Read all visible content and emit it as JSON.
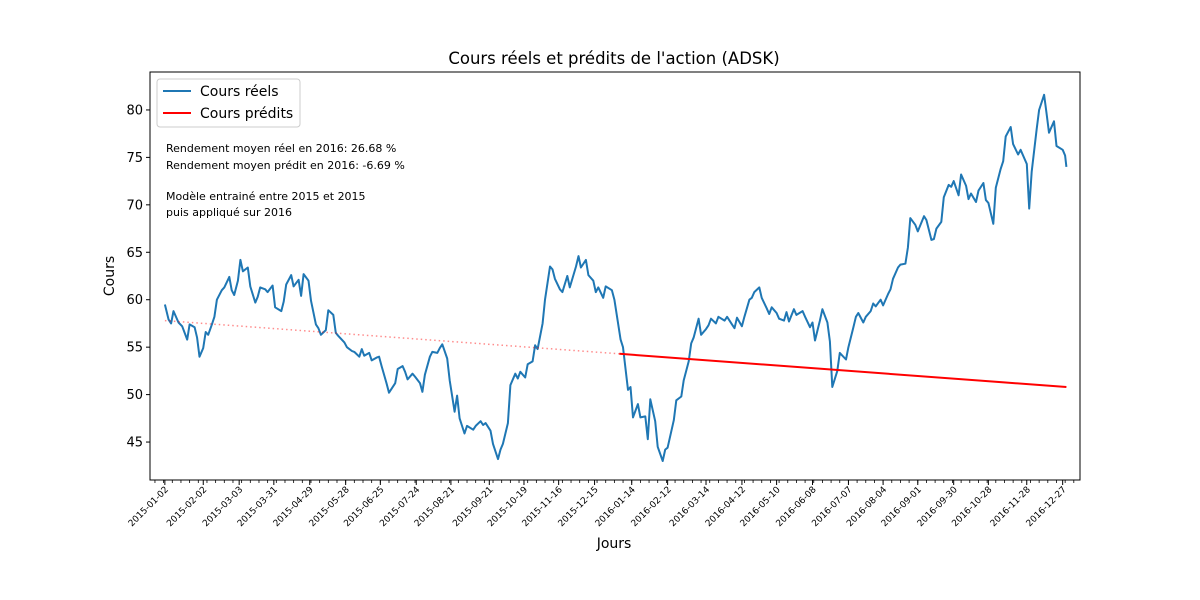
{
  "chart_data": {
    "type": "line",
    "title": "Cours réels et prédits de l'action (ADSK)",
    "xlabel": "Jours",
    "ylabel": "Cours",
    "ylim": [
      41,
      84
    ],
    "xlim": [
      "2014-12-21",
      "2017-01-10"
    ],
    "yticks": [
      45,
      50,
      55,
      60,
      65,
      70,
      75,
      80
    ],
    "x_tick_labels": [
      "2015-01-02",
      "2015-02-02",
      "2015-03-03",
      "2015-03-31",
      "2015-04-29",
      "2015-05-28",
      "2015-06-25",
      "2015-07-24",
      "2015-08-21",
      "2015-09-21",
      "2015-10-19",
      "2015-11-16",
      "2015-12-15",
      "2016-01-14",
      "2016-02-12",
      "2016-03-14",
      "2016-04-12",
      "2016-05-10",
      "2016-06-08",
      "2016-07-07",
      "2016-08-04",
      "2016-09-01",
      "2016-09-30",
      "2016-10-28",
      "2016-11-28",
      "2016-12-27"
    ],
    "legend_placement": "top-left",
    "grid": false,
    "series": [
      {
        "name": "Cours réels",
        "color": "#1f77b4",
        "style": "solid",
        "points": [
          [
            "2015-01-02",
            59.5
          ],
          [
            "2015-01-05",
            57.9
          ],
          [
            "2015-01-07",
            57.5
          ],
          [
            "2015-01-09",
            58.8
          ],
          [
            "2015-01-13",
            57.6
          ],
          [
            "2015-01-16",
            57.2
          ],
          [
            "2015-01-20",
            55.8
          ],
          [
            "2015-01-22",
            57.4
          ],
          [
            "2015-01-26",
            57.1
          ],
          [
            "2015-01-28",
            56.0
          ],
          [
            "2015-01-30",
            54.0
          ],
          [
            "2015-02-02",
            54.9
          ],
          [
            "2015-02-04",
            56.6
          ],
          [
            "2015-02-06",
            56.3
          ],
          [
            "2015-02-09",
            57.4
          ],
          [
            "2015-02-11",
            58.2
          ],
          [
            "2015-02-13",
            60.0
          ],
          [
            "2015-02-17",
            61.0
          ],
          [
            "2015-02-19",
            61.3
          ],
          [
            "2015-02-23",
            62.4
          ],
          [
            "2015-02-25",
            61.0
          ],
          [
            "2015-02-27",
            60.5
          ],
          [
            "2015-03-02",
            62.0
          ],
          [
            "2015-03-04",
            64.2
          ],
          [
            "2015-03-06",
            63.0
          ],
          [
            "2015-03-10",
            63.4
          ],
          [
            "2015-03-12",
            61.4
          ],
          [
            "2015-03-16",
            59.7
          ],
          [
            "2015-03-18",
            60.3
          ],
          [
            "2015-03-20",
            61.3
          ],
          [
            "2015-03-24",
            61.1
          ],
          [
            "2015-03-26",
            60.8
          ],
          [
            "2015-03-30",
            61.5
          ],
          [
            "2015-04-01",
            59.2
          ],
          [
            "2015-04-06",
            58.8
          ],
          [
            "2015-04-08",
            59.8
          ],
          [
            "2015-04-10",
            61.6
          ],
          [
            "2015-04-14",
            62.6
          ],
          [
            "2015-04-16",
            61.4
          ],
          [
            "2015-04-20",
            62.1
          ],
          [
            "2015-04-22",
            60.4
          ],
          [
            "2015-04-24",
            62.7
          ],
          [
            "2015-04-28",
            62.0
          ],
          [
            "2015-04-30",
            59.9
          ],
          [
            "2015-05-04",
            57.4
          ],
          [
            "2015-05-06",
            57.0
          ],
          [
            "2015-05-08",
            56.3
          ],
          [
            "2015-05-12",
            56.8
          ],
          [
            "2015-05-14",
            58.9
          ],
          [
            "2015-05-18",
            58.4
          ],
          [
            "2015-05-20",
            56.5
          ],
          [
            "2015-05-22",
            56.2
          ],
          [
            "2015-05-27",
            55.5
          ],
          [
            "2015-05-29",
            55.0
          ],
          [
            "2015-06-02",
            54.6
          ],
          [
            "2015-06-04",
            54.5
          ],
          [
            "2015-06-08",
            54.0
          ],
          [
            "2015-06-10",
            54.8
          ],
          [
            "2015-06-12",
            54.1
          ],
          [
            "2015-06-16",
            54.4
          ],
          [
            "2015-06-18",
            53.6
          ],
          [
            "2015-06-22",
            53.9
          ],
          [
            "2015-06-24",
            54.0
          ],
          [
            "2015-06-26",
            53.0
          ],
          [
            "2015-06-30",
            51.2
          ],
          [
            "2015-07-02",
            50.2
          ],
          [
            "2015-07-07",
            51.2
          ],
          [
            "2015-07-09",
            52.7
          ],
          [
            "2015-07-13",
            53.0
          ],
          [
            "2015-07-15",
            52.4
          ],
          [
            "2015-07-17",
            51.6
          ],
          [
            "2015-07-21",
            52.2
          ],
          [
            "2015-07-23",
            51.9
          ],
          [
            "2015-07-27",
            51.2
          ],
          [
            "2015-07-29",
            50.3
          ],
          [
            "2015-07-31",
            52.1
          ],
          [
            "2015-08-04",
            54.0
          ],
          [
            "2015-08-06",
            54.5
          ],
          [
            "2015-08-10",
            54.4
          ],
          [
            "2015-08-12",
            54.9
          ],
          [
            "2015-08-14",
            55.3
          ],
          [
            "2015-08-18",
            53.8
          ],
          [
            "2015-08-20",
            51.5
          ],
          [
            "2015-08-24",
            48.2
          ],
          [
            "2015-08-26",
            49.9
          ],
          [
            "2015-08-28",
            47.5
          ],
          [
            "2015-09-01",
            45.9
          ],
          [
            "2015-09-03",
            46.7
          ],
          [
            "2015-09-08",
            46.3
          ],
          [
            "2015-09-10",
            46.7
          ],
          [
            "2015-09-14",
            47.2
          ],
          [
            "2015-09-16",
            46.8
          ],
          [
            "2015-09-18",
            47.0
          ],
          [
            "2015-09-22",
            46.2
          ],
          [
            "2015-09-24",
            44.8
          ],
          [
            "2015-09-28",
            43.2
          ],
          [
            "2015-09-30",
            44.2
          ],
          [
            "2015-10-02",
            44.8
          ],
          [
            "2015-10-06",
            47.0
          ],
          [
            "2015-10-08",
            51.0
          ],
          [
            "2015-10-12",
            52.2
          ],
          [
            "2015-10-14",
            51.7
          ],
          [
            "2015-10-16",
            52.4
          ],
          [
            "2015-10-20",
            51.8
          ],
          [
            "2015-10-22",
            53.2
          ],
          [
            "2015-10-26",
            53.5
          ],
          [
            "2015-10-28",
            55.2
          ],
          [
            "2015-10-30",
            54.8
          ],
          [
            "2015-11-03",
            57.5
          ],
          [
            "2015-11-05",
            60.0
          ],
          [
            "2015-11-09",
            63.5
          ],
          [
            "2015-11-11",
            63.2
          ],
          [
            "2015-11-13",
            62.2
          ],
          [
            "2015-11-17",
            61.1
          ],
          [
            "2015-11-19",
            60.8
          ],
          [
            "2015-11-23",
            62.5
          ],
          [
            "2015-11-25",
            61.3
          ],
          [
            "2015-11-30",
            63.5
          ],
          [
            "2015-12-02",
            64.6
          ],
          [
            "2015-12-04",
            63.4
          ],
          [
            "2015-12-08",
            64.2
          ],
          [
            "2015-12-10",
            62.6
          ],
          [
            "2015-12-14",
            62.0
          ],
          [
            "2015-12-16",
            60.8
          ],
          [
            "2015-12-18",
            61.3
          ],
          [
            "2015-12-22",
            60.2
          ],
          [
            "2015-12-24",
            61.4
          ],
          [
            "2015-12-29",
            61.0
          ],
          [
            "2015-12-31",
            60.0
          ],
          [
            "2016-01-05",
            55.8
          ],
          [
            "2016-01-07",
            55.0
          ],
          [
            "2016-01-11",
            50.5
          ],
          [
            "2016-01-13",
            50.8
          ],
          [
            "2016-01-15",
            47.6
          ],
          [
            "2016-01-19",
            49.0
          ],
          [
            "2016-01-21",
            47.6
          ],
          [
            "2016-01-25",
            47.7
          ],
          [
            "2016-01-27",
            45.3
          ],
          [
            "2016-01-29",
            49.5
          ],
          [
            "2016-02-02",
            47.2
          ],
          [
            "2016-02-04",
            44.5
          ],
          [
            "2016-02-08",
            43.0
          ],
          [
            "2016-02-10",
            44.2
          ],
          [
            "2016-02-12",
            44.4
          ],
          [
            "2016-02-17",
            47.3
          ],
          [
            "2016-02-19",
            49.4
          ],
          [
            "2016-02-23",
            49.8
          ],
          [
            "2016-02-25",
            51.5
          ],
          [
            "2016-02-29",
            53.5
          ],
          [
            "2016-03-02",
            55.4
          ],
          [
            "2016-03-04",
            56.0
          ],
          [
            "2016-03-08",
            58.0
          ],
          [
            "2016-03-10",
            56.3
          ],
          [
            "2016-03-14",
            56.9
          ],
          [
            "2016-03-16",
            57.3
          ],
          [
            "2016-03-18",
            58.0
          ],
          [
            "2016-03-22",
            57.5
          ],
          [
            "2016-03-24",
            58.2
          ],
          [
            "2016-03-29",
            57.8
          ],
          [
            "2016-03-31",
            58.2
          ],
          [
            "2016-04-04",
            57.4
          ],
          [
            "2016-04-06",
            57.0
          ],
          [
            "2016-04-08",
            58.1
          ],
          [
            "2016-04-12",
            57.2
          ],
          [
            "2016-04-14",
            58.2
          ],
          [
            "2016-04-18",
            60.0
          ],
          [
            "2016-04-20",
            60.2
          ],
          [
            "2016-04-22",
            60.8
          ],
          [
            "2016-04-26",
            61.3
          ],
          [
            "2016-04-28",
            60.2
          ],
          [
            "2016-05-02",
            59.1
          ],
          [
            "2016-05-04",
            58.5
          ],
          [
            "2016-05-06",
            59.2
          ],
          [
            "2016-05-10",
            58.6
          ],
          [
            "2016-05-12",
            58.0
          ],
          [
            "2016-05-16",
            57.8
          ],
          [
            "2016-05-18",
            58.7
          ],
          [
            "2016-05-20",
            57.7
          ],
          [
            "2016-05-24",
            59.0
          ],
          [
            "2016-05-26",
            58.4
          ],
          [
            "2016-05-31",
            58.8
          ],
          [
            "2016-06-02",
            58.2
          ],
          [
            "2016-06-06",
            57.1
          ],
          [
            "2016-06-08",
            57.6
          ],
          [
            "2016-06-10",
            55.7
          ],
          [
            "2016-06-14",
            57.8
          ],
          [
            "2016-06-16",
            59.0
          ],
          [
            "2016-06-20",
            57.6
          ],
          [
            "2016-06-22",
            55.6
          ],
          [
            "2016-06-24",
            50.8
          ],
          [
            "2016-06-28",
            52.5
          ],
          [
            "2016-06-30",
            54.4
          ],
          [
            "2016-07-05",
            53.7
          ],
          [
            "2016-07-07",
            55.0
          ],
          [
            "2016-07-11",
            57.1
          ],
          [
            "2016-07-13",
            58.2
          ],
          [
            "2016-07-15",
            58.6
          ],
          [
            "2016-07-19",
            57.6
          ],
          [
            "2016-07-21",
            58.2
          ],
          [
            "2016-07-25",
            58.8
          ],
          [
            "2016-07-27",
            59.6
          ],
          [
            "2016-07-29",
            59.3
          ],
          [
            "2016-08-02",
            60.0
          ],
          [
            "2016-08-04",
            59.4
          ],
          [
            "2016-08-08",
            60.6
          ],
          [
            "2016-08-10",
            61.1
          ],
          [
            "2016-08-12",
            62.2
          ],
          [
            "2016-08-16",
            63.4
          ],
          [
            "2016-08-18",
            63.7
          ],
          [
            "2016-08-22",
            63.8
          ],
          [
            "2016-08-24",
            65.5
          ],
          [
            "2016-08-26",
            68.6
          ],
          [
            "2016-08-30",
            67.9
          ],
          [
            "2016-09-01",
            67.2
          ],
          [
            "2016-09-06",
            68.8
          ],
          [
            "2016-09-08",
            68.4
          ],
          [
            "2016-09-12",
            66.3
          ],
          [
            "2016-09-14",
            66.4
          ],
          [
            "2016-09-16",
            67.5
          ],
          [
            "2016-09-20",
            68.2
          ],
          [
            "2016-09-22",
            70.8
          ],
          [
            "2016-09-26",
            72.1
          ],
          [
            "2016-09-28",
            71.9
          ],
          [
            "2016-09-30",
            72.5
          ],
          [
            "2016-10-04",
            71.0
          ],
          [
            "2016-10-06",
            73.2
          ],
          [
            "2016-10-10",
            72.0
          ],
          [
            "2016-10-12",
            70.6
          ],
          [
            "2016-10-14",
            71.2
          ],
          [
            "2016-10-18",
            70.3
          ],
          [
            "2016-10-20",
            71.5
          ],
          [
            "2016-10-24",
            72.3
          ],
          [
            "2016-10-26",
            70.5
          ],
          [
            "2016-10-28",
            70.2
          ],
          [
            "2016-11-01",
            68.0
          ],
          [
            "2016-11-03",
            71.8
          ],
          [
            "2016-11-07",
            73.8
          ],
          [
            "2016-11-09",
            74.6
          ],
          [
            "2016-11-11",
            77.2
          ],
          [
            "2016-11-15",
            78.2
          ],
          [
            "2016-11-17",
            76.4
          ],
          [
            "2016-11-21",
            75.3
          ],
          [
            "2016-11-23",
            75.8
          ],
          [
            "2016-11-28",
            74.3
          ],
          [
            "2016-11-30",
            69.6
          ],
          [
            "2016-12-02",
            73.5
          ],
          [
            "2016-12-06",
            78.0
          ],
          [
            "2016-12-08",
            80.0
          ],
          [
            "2016-12-12",
            81.6
          ],
          [
            "2016-12-14",
            79.6
          ],
          [
            "2016-12-16",
            77.6
          ],
          [
            "2016-12-20",
            78.8
          ],
          [
            "2016-12-22",
            76.2
          ],
          [
            "2016-12-27",
            75.8
          ],
          [
            "2016-12-29",
            75.2
          ],
          [
            "2016-12-30",
            74.0
          ]
        ]
      },
      {
        "name": "Cours prédits",
        "color": "#ff0000",
        "style": "solid",
        "points": [
          [
            "2016-01-04",
            54.3
          ],
          [
            "2016-12-30",
            50.8
          ]
        ]
      },
      {
        "color": "#ff0000",
        "style": "dotted",
        "opacity": 0.45,
        "points": [
          [
            "2015-01-02",
            57.8
          ],
          [
            "2016-01-04",
            54.3
          ]
        ]
      }
    ],
    "annotations": [
      "Rendement moyen réel en 2016: 26.68 %",
      "Rendement moyen prédit en 2016: -6.69 %",
      "",
      "Modèle entrainé entre 2015 et 2015",
      "puis appliqué sur 2016"
    ]
  }
}
